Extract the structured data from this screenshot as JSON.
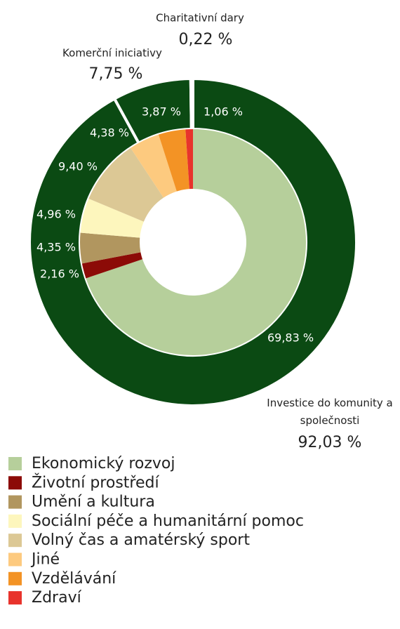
{
  "chart_data": {
    "type": "pie",
    "series": [
      {
        "categories": [
          "Ekonomický rozvoj",
          "Životní prostředí",
          "Umění a kultura",
          "Sociální péče a humanitární pomoc",
          "Volný čas a amatérský sport",
          "Jiné",
          "Vzdělávání",
          "Zdraví"
        ],
        "values": [
          69.83,
          2.16,
          4.35,
          4.96,
          9.4,
          4.38,
          3.87,
          1.06
        ],
        "value_labels": [
          "69,83 %",
          "2,16 %",
          "4,35 %",
          "4,96 %",
          "9,40 %",
          "4,38 %",
          "3,87 %",
          "1,06 %"
        ],
        "colors": [
          "#b6cf9b",
          "#8c0b07",
          "#b1965f",
          "#fdf6bd",
          "#dcc895",
          "#fdca7f",
          "#f39325",
          "#e8332c"
        ]
      },
      {
        "categories": [
          "Investice do komunity a společnosti",
          "Komerční iniciativy",
          "Charitativní dary"
        ],
        "values": [
          92.03,
          7.75,
          0.22
        ],
        "value_labels": [
          "92,03 %",
          "7,75 %",
          "0,22 %"
        ],
        "colors": [
          "#0b4a13",
          "#0b4a13",
          "#0b4a13"
        ]
      }
    ]
  }
}
